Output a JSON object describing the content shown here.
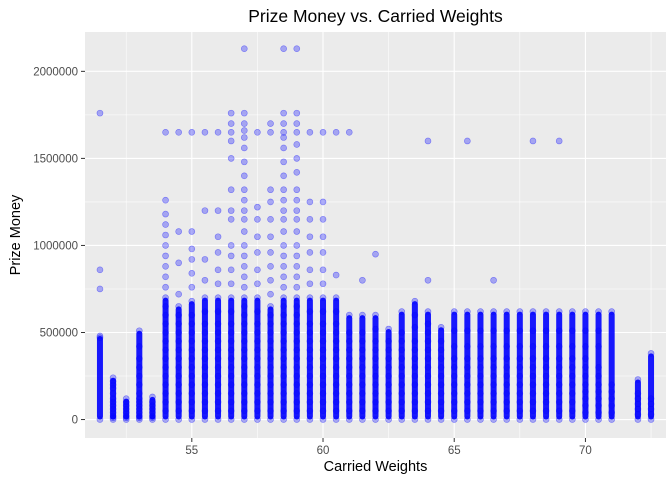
{
  "chart_data": {
    "type": "scatter",
    "title": "Prize Money vs. Carried Weights",
    "xlabel": "Carried Weights",
    "ylabel": "Prize Money",
    "xlim": [
      50.93,
      73.07
    ],
    "ylim": [
      -106000,
      2226000
    ],
    "x_ticks": [
      55,
      60,
      65,
      70
    ],
    "x_tick_labels": [
      "55",
      "60",
      "65",
      "70"
    ],
    "y_ticks": [
      0,
      500000,
      1000000,
      1500000,
      2000000
    ],
    "y_tick_labels": [
      "0",
      "500000",
      "1000000",
      "1500000",
      "2000000"
    ],
    "grid": true,
    "legend": "none",
    "colors": {
      "panel_background": "#ebebeb",
      "grid_major": "#ffffff",
      "point": "#0000ff",
      "point_alpha": 0.3
    },
    "columns": [
      {
        "x": 51.5,
        "ys": [
          0,
          480000,
          470000,
          750000,
          860000,
          1760000
        ]
      },
      {
        "x": 52,
        "ys": [
          0,
          10000,
          20000,
          40000,
          60000,
          80000,
          100000,
          120000,
          150000,
          180000,
          200000,
          220000,
          240000
        ]
      },
      {
        "x": 52.5,
        "ys": [
          0,
          10000,
          20000,
          40000,
          60000,
          80000,
          100000,
          120000
        ]
      },
      {
        "x": 53,
        "ys": [
          0,
          10000,
          20000,
          40000,
          60000,
          80000,
          100000,
          120000,
          150000,
          200000,
          250000,
          300000,
          350000,
          420000,
          510000
        ]
      },
      {
        "x": 53.5,
        "ys": [
          0,
          10000,
          20000,
          40000,
          60000,
          80000,
          100000,
          130000
        ]
      },
      {
        "x": 54,
        "ys": [
          0,
          50000,
          100000,
          150000,
          200000,
          250000,
          300000,
          350000,
          400000,
          450000,
          500000,
          550000,
          600000,
          650000,
          700000,
          760000,
          820000,
          880000,
          940000,
          1000000,
          1060000,
          1120000,
          1180000,
          1260000,
          1650000
        ]
      },
      {
        "x": 54.5,
        "ys": [
          0,
          50000,
          100000,
          150000,
          200000,
          250000,
          300000,
          350000,
          400000,
          450000,
          500000,
          550000,
          600000,
          650000,
          720000,
          900000,
          1080000,
          1650000
        ]
      },
      {
        "x": 55,
        "ys": [
          0,
          50000,
          100000,
          150000,
          200000,
          250000,
          300000,
          350000,
          400000,
          450000,
          500000,
          550000,
          600000,
          680000,
          760000,
          840000,
          920000,
          980000,
          1080000,
          1650000
        ]
      },
      {
        "x": 55.5,
        "ys": [
          0,
          50000,
          100000,
          150000,
          200000,
          250000,
          300000,
          350000,
          400000,
          450000,
          500000,
          550000,
          620000,
          700000,
          800000,
          920000,
          1200000,
          1650000
        ]
      },
      {
        "x": 56,
        "ys": [
          0,
          50000,
          100000,
          150000,
          200000,
          250000,
          300000,
          350000,
          400000,
          450000,
          500000,
          550000,
          620000,
          700000,
          780000,
          860000,
          960000,
          1050000,
          1200000,
          1650000
        ]
      },
      {
        "x": 56.5,
        "ys": [
          0,
          50000,
          100000,
          150000,
          200000,
          250000,
          300000,
          350000,
          400000,
          450000,
          500000,
          550000,
          620000,
          700000,
          780000,
          860000,
          940000,
          1000000,
          1150000,
          1200000,
          1320000,
          1500000,
          1600000,
          1650000,
          1700000,
          1760000
        ]
      },
      {
        "x": 57,
        "ys": [
          0,
          50000,
          100000,
          150000,
          200000,
          250000,
          300000,
          350000,
          400000,
          450000,
          500000,
          550000,
          600000,
          650000,
          700000,
          760000,
          820000,
          880000,
          940000,
          1000000,
          1080000,
          1150000,
          1200000,
          1260000,
          1320000,
          1400000,
          1480000,
          1560000,
          1620000,
          1660000,
          1700000,
          1760000,
          2130000
        ]
      },
      {
        "x": 57.5,
        "ys": [
          0,
          50000,
          100000,
          150000,
          200000,
          250000,
          300000,
          350000,
          400000,
          450000,
          500000,
          550000,
          620000,
          700000,
          780000,
          860000,
          960000,
          1050000,
          1150000,
          1220000,
          1650000
        ]
      },
      {
        "x": 58,
        "ys": [
          0,
          50000,
          100000,
          150000,
          200000,
          250000,
          300000,
          350000,
          400000,
          450000,
          500000,
          550000,
          600000,
          650000,
          720000,
          800000,
          880000,
          960000,
          1050000,
          1150000,
          1250000,
          1320000,
          1650000,
          1700000
        ]
      },
      {
        "x": 58.5,
        "ys": [
          0,
          50000,
          100000,
          150000,
          200000,
          250000,
          300000,
          350000,
          400000,
          450000,
          500000,
          550000,
          600000,
          650000,
          700000,
          760000,
          820000,
          880000,
          940000,
          1000000,
          1080000,
          1150000,
          1200000,
          1260000,
          1320000,
          1400000,
          1480000,
          1560000,
          1620000,
          1650000,
          1700000,
          1760000,
          2130000
        ]
      },
      {
        "x": 59,
        "ys": [
          0,
          50000,
          100000,
          150000,
          200000,
          250000,
          300000,
          350000,
          400000,
          450000,
          500000,
          550000,
          600000,
          650000,
          700000,
          760000,
          820000,
          880000,
          940000,
          1000000,
          1080000,
          1150000,
          1200000,
          1260000,
          1320000,
          1420000,
          1500000,
          1580000,
          1650000,
          1700000,
          1760000,
          2130000
        ]
      },
      {
        "x": 59.5,
        "ys": [
          0,
          50000,
          100000,
          150000,
          200000,
          250000,
          300000,
          350000,
          400000,
          450000,
          500000,
          550000,
          620000,
          700000,
          780000,
          860000,
          960000,
          1050000,
          1150000,
          1250000,
          1650000
        ]
      },
      {
        "x": 60,
        "ys": [
          0,
          50000,
          100000,
          150000,
          200000,
          250000,
          300000,
          350000,
          400000,
          450000,
          500000,
          550000,
          620000,
          700000,
          780000,
          860000,
          960000,
          1050000,
          1150000,
          1250000,
          1650000
        ]
      },
      {
        "x": 60.5,
        "ys": [
          0,
          50000,
          100000,
          150000,
          200000,
          250000,
          300000,
          350000,
          400000,
          450000,
          500000,
          550000,
          620000,
          700000,
          830000,
          1650000
        ]
      },
      {
        "x": 61,
        "ys": [
          0,
          50000,
          100000,
          150000,
          200000,
          250000,
          300000,
          350000,
          400000,
          450000,
          500000,
          600000,
          1650000
        ]
      },
      {
        "x": 61.5,
        "ys": [
          0,
          50000,
          100000,
          150000,
          200000,
          250000,
          300000,
          350000,
          400000,
          450000,
          500000,
          600000,
          800000
        ]
      },
      {
        "x": 62,
        "ys": [
          0,
          50000,
          100000,
          150000,
          200000,
          250000,
          300000,
          350000,
          400000,
          450000,
          520000,
          600000,
          950000
        ]
      },
      {
        "x": 62.5,
        "ys": [
          0,
          50000,
          100000,
          150000,
          200000,
          250000,
          300000,
          350000,
          400000,
          450000,
          520000
        ]
      },
      {
        "x": 63,
        "ys": [
          0,
          50000,
          100000,
          150000,
          200000,
          250000,
          300000,
          350000,
          400000,
          450000,
          500000,
          620000
        ]
      },
      {
        "x": 63.5,
        "ys": [
          0,
          50000,
          100000,
          150000,
          200000,
          250000,
          300000,
          350000,
          400000,
          450000,
          530000,
          600000,
          680000
        ]
      },
      {
        "x": 64,
        "ys": [
          0,
          50000,
          100000,
          150000,
          200000,
          250000,
          300000,
          350000,
          400000,
          450000,
          500000,
          550000,
          620000,
          800000,
          1600000
        ]
      },
      {
        "x": 64.5,
        "ys": [
          0,
          50000,
          100000,
          150000,
          200000,
          250000,
          300000,
          350000,
          400000,
          450000,
          530000
        ]
      },
      {
        "x": 65,
        "ys": [
          0,
          50000,
          100000,
          150000,
          200000,
          250000,
          300000,
          350000,
          420000,
          510000,
          620000
        ]
      },
      {
        "x": 65.5,
        "ys": [
          0,
          50000,
          100000,
          150000,
          200000,
          250000,
          300000,
          350000,
          420000,
          510000,
          620000,
          1600000
        ]
      },
      {
        "x": 66,
        "ys": [
          0,
          50000,
          100000,
          150000,
          200000,
          250000,
          300000,
          350000,
          420000,
          510000,
          620000
        ]
      },
      {
        "x": 66.5,
        "ys": [
          0,
          50000,
          100000,
          150000,
          200000,
          250000,
          300000,
          350000,
          420000,
          510000,
          620000,
          800000
        ]
      },
      {
        "x": 67,
        "ys": [
          0,
          50000,
          100000,
          150000,
          200000,
          250000,
          300000,
          350000,
          420000,
          510000,
          620000
        ]
      },
      {
        "x": 67.5,
        "ys": [
          0,
          50000,
          100000,
          150000,
          200000,
          250000,
          300000,
          350000,
          420000,
          510000,
          620000
        ]
      },
      {
        "x": 68,
        "ys": [
          0,
          50000,
          100000,
          150000,
          200000,
          250000,
          300000,
          350000,
          420000,
          510000,
          620000,
          1600000
        ]
      },
      {
        "x": 68.5,
        "ys": [
          0,
          50000,
          100000,
          150000,
          200000,
          250000,
          300000,
          350000,
          420000,
          510000,
          620000
        ]
      },
      {
        "x": 69,
        "ys": [
          0,
          50000,
          100000,
          150000,
          200000,
          250000,
          300000,
          350000,
          420000,
          510000,
          620000,
          1600000
        ]
      },
      {
        "x": 69.5,
        "ys": [
          0,
          50000,
          100000,
          150000,
          200000,
          250000,
          300000,
          350000,
          420000,
          510000,
          620000
        ]
      },
      {
        "x": 70,
        "ys": [
          0,
          40000,
          80000,
          120000,
          160000,
          200000,
          250000,
          300000,
          350000,
          420000,
          510000,
          620000
        ]
      },
      {
        "x": 70.5,
        "ys": [
          0,
          40000,
          80000,
          120000,
          160000,
          200000,
          250000,
          300000,
          420000,
          510000,
          620000
        ]
      },
      {
        "x": 71,
        "ys": [
          0,
          40000,
          80000,
          120000,
          160000,
          200000,
          620000
        ]
      },
      {
        "x": 72,
        "ys": [
          0,
          30000,
          60000,
          90000,
          120000,
          150000,
          230000
        ]
      },
      {
        "x": 72.5,
        "ys": [
          0,
          30000,
          60000,
          90000,
          120000,
          380000
        ]
      }
    ]
  }
}
